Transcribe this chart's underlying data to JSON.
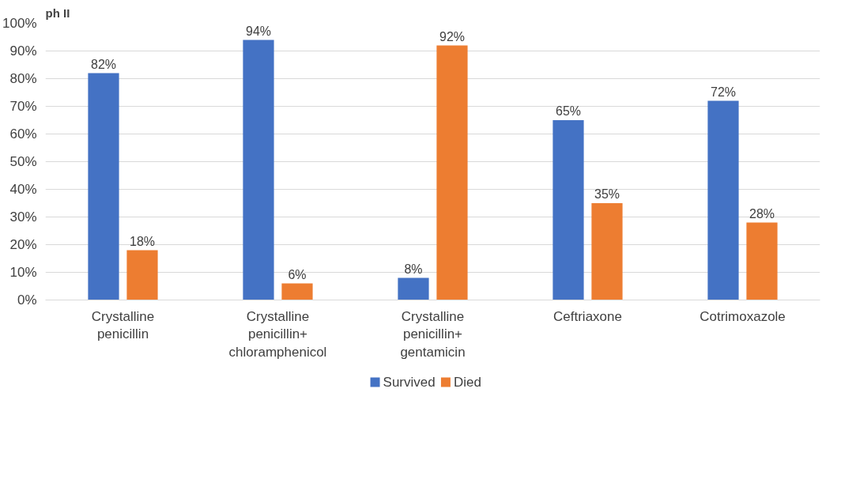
{
  "chart_data": {
    "type": "bar",
    "title": "ph II",
    "categories": [
      "Crystalline penicillin",
      "Crystalline penicillin+ chloramphenicol",
      "Crystalline penicillin+ gentamicin",
      "Ceftriaxone",
      "Cotrimoxazole"
    ],
    "series": [
      {
        "name": "Survived",
        "color": "#4472c4",
        "values": [
          82,
          94,
          8,
          65,
          72
        ]
      },
      {
        "name": "Died",
        "color": "#ed7d31",
        "values": [
          18,
          6,
          92,
          35,
          28
        ]
      }
    ],
    "ylim": [
      0,
      100
    ],
    "yticks": [
      {
        "value": 0,
        "label": "0%"
      },
      {
        "value": 10,
        "label": "10%"
      },
      {
        "value": 20,
        "label": "20%"
      },
      {
        "value": 30,
        "label": "30%"
      },
      {
        "value": 40,
        "label": "40%"
      },
      {
        "value": 50,
        "label": "50%"
      },
      {
        "value": 60,
        "label": "60%"
      },
      {
        "value": 70,
        "label": "70%"
      },
      {
        "value": 80,
        "label": "80%"
      },
      {
        "value": 90,
        "label": "90%"
      },
      {
        "value": 100,
        "label": "100%"
      }
    ],
    "value_labels": [
      [
        "82%",
        "94%",
        "8%",
        "65%",
        "72%"
      ],
      [
        "18%",
        "6%",
        "92%",
        "35%",
        "28%"
      ]
    ],
    "grid": "y",
    "legend": "bottom"
  }
}
